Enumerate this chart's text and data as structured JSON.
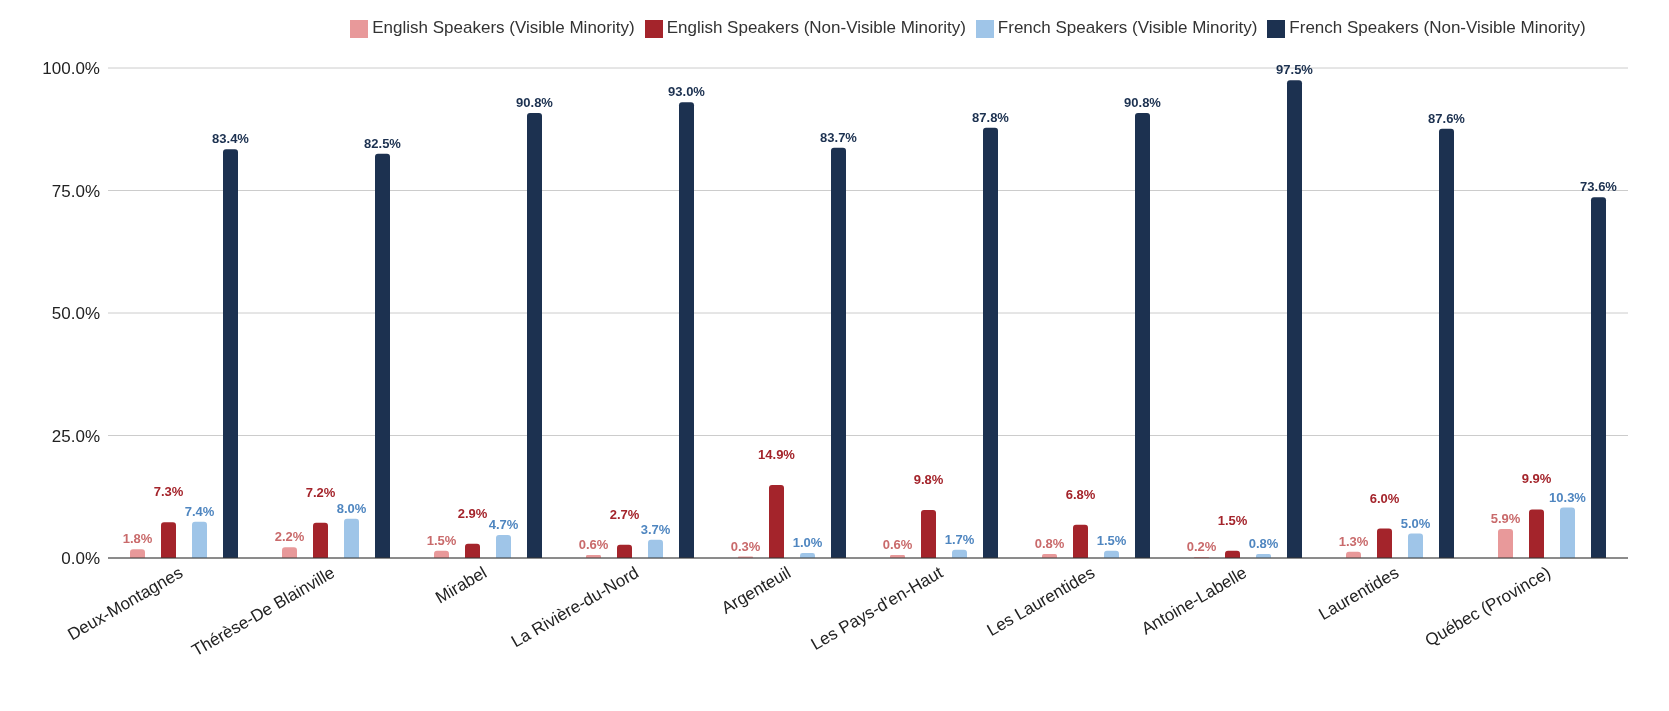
{
  "chart_data": {
    "type": "bar",
    "categories": [
      "Deux-Montagnes",
      "Thérèse-De Blainville",
      "Mirabel",
      "La Rivière-du-Nord",
      "Argenteuil",
      "Les Pays-d'en-Haut",
      "Les Laurentides",
      "Antoine-Labelle",
      "Laurentides",
      "Québec (Province)"
    ],
    "series": [
      {
        "name": "English Speakers (Visible Minority)",
        "color": "#e8999a",
        "values": [
          1.8,
          2.2,
          1.5,
          0.6,
          0.3,
          0.6,
          0.8,
          0.2,
          1.3,
          5.9
        ],
        "value_labels": [
          "1.8%",
          "2.2%",
          "1.5%",
          "0.6%",
          "0.3%",
          "0.6%",
          "0.8%",
          "0.2%",
          "1.3%",
          "5.9%"
        ]
      },
      {
        "name": "English Speakers (Non-Visible Minority)",
        "color": "#a4242b",
        "values": [
          7.3,
          7.2,
          2.9,
          2.7,
          14.9,
          9.8,
          6.8,
          1.5,
          6.0,
          9.9
        ],
        "value_labels": [
          "7.3%",
          "7.2%",
          "2.9%",
          "2.7%",
          "14.9%",
          "9.8%",
          "6.8%",
          "1.5%",
          "6.0%",
          "9.9%"
        ]
      },
      {
        "name": "French Speakers (Visible Minority)",
        "color": "#9fc5e8",
        "values": [
          7.4,
          8.0,
          4.7,
          3.7,
          1.0,
          1.7,
          1.5,
          0.8,
          5.0,
          10.3
        ],
        "value_labels": [
          "7.4%",
          "8.0%",
          "4.7%",
          "3.7%",
          "1.0%",
          "1.7%",
          "1.5%",
          "0.8%",
          "5.0%",
          "10.3%"
        ]
      },
      {
        "name": "French Speakers (Non-Visible Minority)",
        "color": "#1c3150",
        "values": [
          83.4,
          82.5,
          90.8,
          93.0,
          83.7,
          87.8,
          90.8,
          97.5,
          87.6,
          73.6
        ],
        "value_labels": [
          "83.4%",
          "82.5%",
          "90.8%",
          "93.0%",
          "83.7%",
          "87.8%",
          "90.8%",
          "97.5%",
          "87.6%",
          "73.6%"
        ]
      }
    ],
    "ylim": [
      0,
      100
    ],
    "yticks": [
      {
        "value": 0,
        "label": "0.0%"
      },
      {
        "value": 25,
        "label": "25.0%"
      },
      {
        "value": 50,
        "label": "50.0%"
      },
      {
        "value": 75,
        "label": "75.0%"
      },
      {
        "value": 100,
        "label": "100.0%"
      }
    ],
    "grid": "y",
    "legend": "top"
  }
}
